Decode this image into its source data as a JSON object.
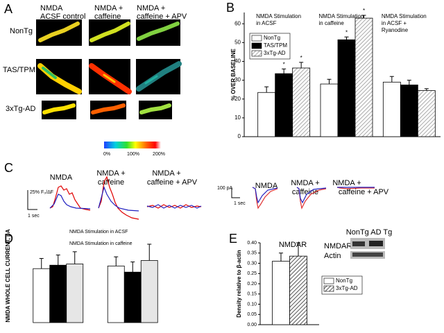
{
  "panel_labels": [
    "A",
    "B",
    "C",
    "D",
    "E"
  ],
  "panel_a": {
    "column_titles": [
      [
        "NMDA",
        "ACSF control"
      ],
      [
        "NMDA +",
        "caffeine"
      ],
      [
        "NMDA +",
        "caffeine + APV"
      ]
    ],
    "row_labels": [
      "NonTg",
      "TAS/TPM",
      "3xTg-AD"
    ],
    "colorbar_labels": [
      "0%",
      "100%",
      "200%"
    ]
  },
  "panel_c": {
    "left_titles": [
      [
        "NMDA"
      ],
      [
        "NMDA +",
        "caffeine"
      ],
      [
        "NMDA +",
        "caffeine + APV"
      ]
    ],
    "left_scale": [
      "25% F₀/ΔF",
      "1 sec"
    ],
    "right_titles": [
      [
        "NMDA"
      ],
      [
        "NMDA +",
        "caffeine"
      ],
      [
        "NMDA +",
        "caffeine + APV"
      ]
    ],
    "right_scale": [
      "100 pA",
      "1 sec"
    ]
  },
  "blot": {
    "lanes": "NonTg AD Tg",
    "rows": [
      "NMDAR",
      "Actin"
    ]
  },
  "chart_data": [
    {
      "type": "bar",
      "y_label": "% OVER BASELINE",
      "categories": [
        "NMDA Stimulation in ACSF",
        "NMDA Stimulation in caffeine",
        "NMDA Stimulation in ACSF + Ryanodine"
      ],
      "series": [
        {
          "name": "NonTg",
          "color": "#ffffff",
          "values": [
            23.5,
            28,
            29
          ],
          "errors": [
            3,
            2.5,
            3
          ],
          "markers": [
            null,
            null,
            null
          ]
        },
        {
          "name": "TAS/TPM",
          "color": "#000000",
          "values": [
            33.5,
            51.5,
            27.5
          ],
          "errors": [
            2.5,
            1.5,
            2.5
          ],
          "markers": [
            "*",
            "*",
            null
          ]
        },
        {
          "name": "3xTg-AD",
          "color": "#aaaaaa",
          "pattern": "hatch",
          "values": [
            36.5,
            63,
            24.5
          ],
          "errors": [
            3,
            1.5,
            1
          ],
          "markers": [
            "*",
            "*",
            null
          ]
        }
      ],
      "ylim": [
        0,
        66
      ],
      "yticks": [
        0,
        10,
        20,
        30,
        40,
        50,
        60
      ],
      "legend": "upper left"
    },
    {
      "type": "bar",
      "y_label": "NMDA WHOLE CELL CURRENT, pA",
      "categories": [
        "NMDA Stimulation in ACSF",
        "NMDA Stimulation in caffeine"
      ],
      "series": [
        {
          "name": null,
          "color": "#ffffff",
          "values": [
            265,
            278
          ],
          "errors": [
            50,
            45
          ]
        },
        {
          "name": null,
          "color": "#000000",
          "values": [
            282,
            248
          ],
          "errors": [
            50,
            50
          ]
        },
        {
          "name": null,
          "color": "#e6e6e6",
          "values": [
            288,
            305
          ],
          "errors": [
            60,
            80
          ]
        }
      ],
      "ylim": [
        0,
        460
      ]
    },
    {
      "type": "bar",
      "title": "NMDAR",
      "y_label": "Density relative to β-actin",
      "categories": [
        null
      ],
      "series": [
        {
          "name": "NonTg",
          "color": "#ffffff",
          "values": [
            0.31
          ],
          "errors": [
            0.04
          ]
        },
        {
          "name": "3xTg-AD",
          "color": "#555555",
          "pattern": "hatch",
          "values": [
            0.335
          ],
          "errors": [
            0.065
          ]
        }
      ],
      "ylim": [
        0,
        0.4
      ],
      "yticks": [
        {
          "value": 0,
          "label": "0.00"
        },
        {
          "value": 0.05,
          "label": "0.05"
        },
        {
          "value": 0.1,
          "label": "0.10"
        },
        {
          "value": 0.15,
          "label": "0.15"
        },
        {
          "value": 0.2,
          "label": "0.20"
        },
        {
          "value": 0.25,
          "label": "0.25"
        },
        {
          "value": 0.3,
          "label": "0.30"
        },
        {
          "value": 0.35,
          "label": "0.35"
        },
        {
          "value": 0.4,
          "label": "0.40"
        }
      ],
      "legend": "right"
    }
  ]
}
